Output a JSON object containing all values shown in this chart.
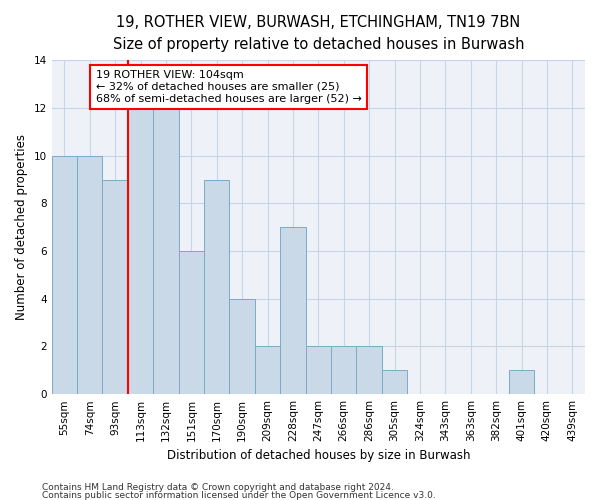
{
  "title1": "19, ROTHER VIEW, BURWASH, ETCHINGHAM, TN19 7BN",
  "title2": "Size of property relative to detached houses in Burwash",
  "xlabel": "Distribution of detached houses by size in Burwash",
  "ylabel": "Number of detached properties",
  "categories": [
    "55sqm",
    "74sqm",
    "93sqm",
    "113sqm",
    "132sqm",
    "151sqm",
    "170sqm",
    "190sqm",
    "209sqm",
    "228sqm",
    "247sqm",
    "266sqm",
    "286sqm",
    "305sqm",
    "324sqm",
    "343sqm",
    "363sqm",
    "382sqm",
    "401sqm",
    "420sqm",
    "439sqm"
  ],
  "values": [
    10,
    10,
    9,
    12,
    12,
    6,
    9,
    4,
    2,
    7,
    2,
    2,
    2,
    1,
    0,
    0,
    0,
    0,
    1,
    0,
    0
  ],
  "bar_color": "#c9d9e8",
  "bar_edge_color": "#7aabc8",
  "property_line_x": 2.5,
  "annotation_line1": "19 ROTHER VIEW: 104sqm",
  "annotation_line2": "← 32% of detached houses are smaller (25)",
  "annotation_line3": "68% of semi-detached houses are larger (52) →",
  "annotation_box_color": "white",
  "annotation_box_edge_color": "red",
  "vline_color": "red",
  "ylim": [
    0,
    14
  ],
  "yticks": [
    0,
    2,
    4,
    6,
    8,
    10,
    12,
    14
  ],
  "grid_color": "#c8d4e8",
  "bg_color": "#eef2f8",
  "footnote1": "Contains HM Land Registry data © Crown copyright and database right 2024.",
  "footnote2": "Contains public sector information licensed under the Open Government Licence v3.0.",
  "title1_fontsize": 10.5,
  "title2_fontsize": 9,
  "xlabel_fontsize": 8.5,
  "ylabel_fontsize": 8.5,
  "tick_fontsize": 7.5,
  "annotation_fontsize": 8,
  "footnote_fontsize": 6.5
}
